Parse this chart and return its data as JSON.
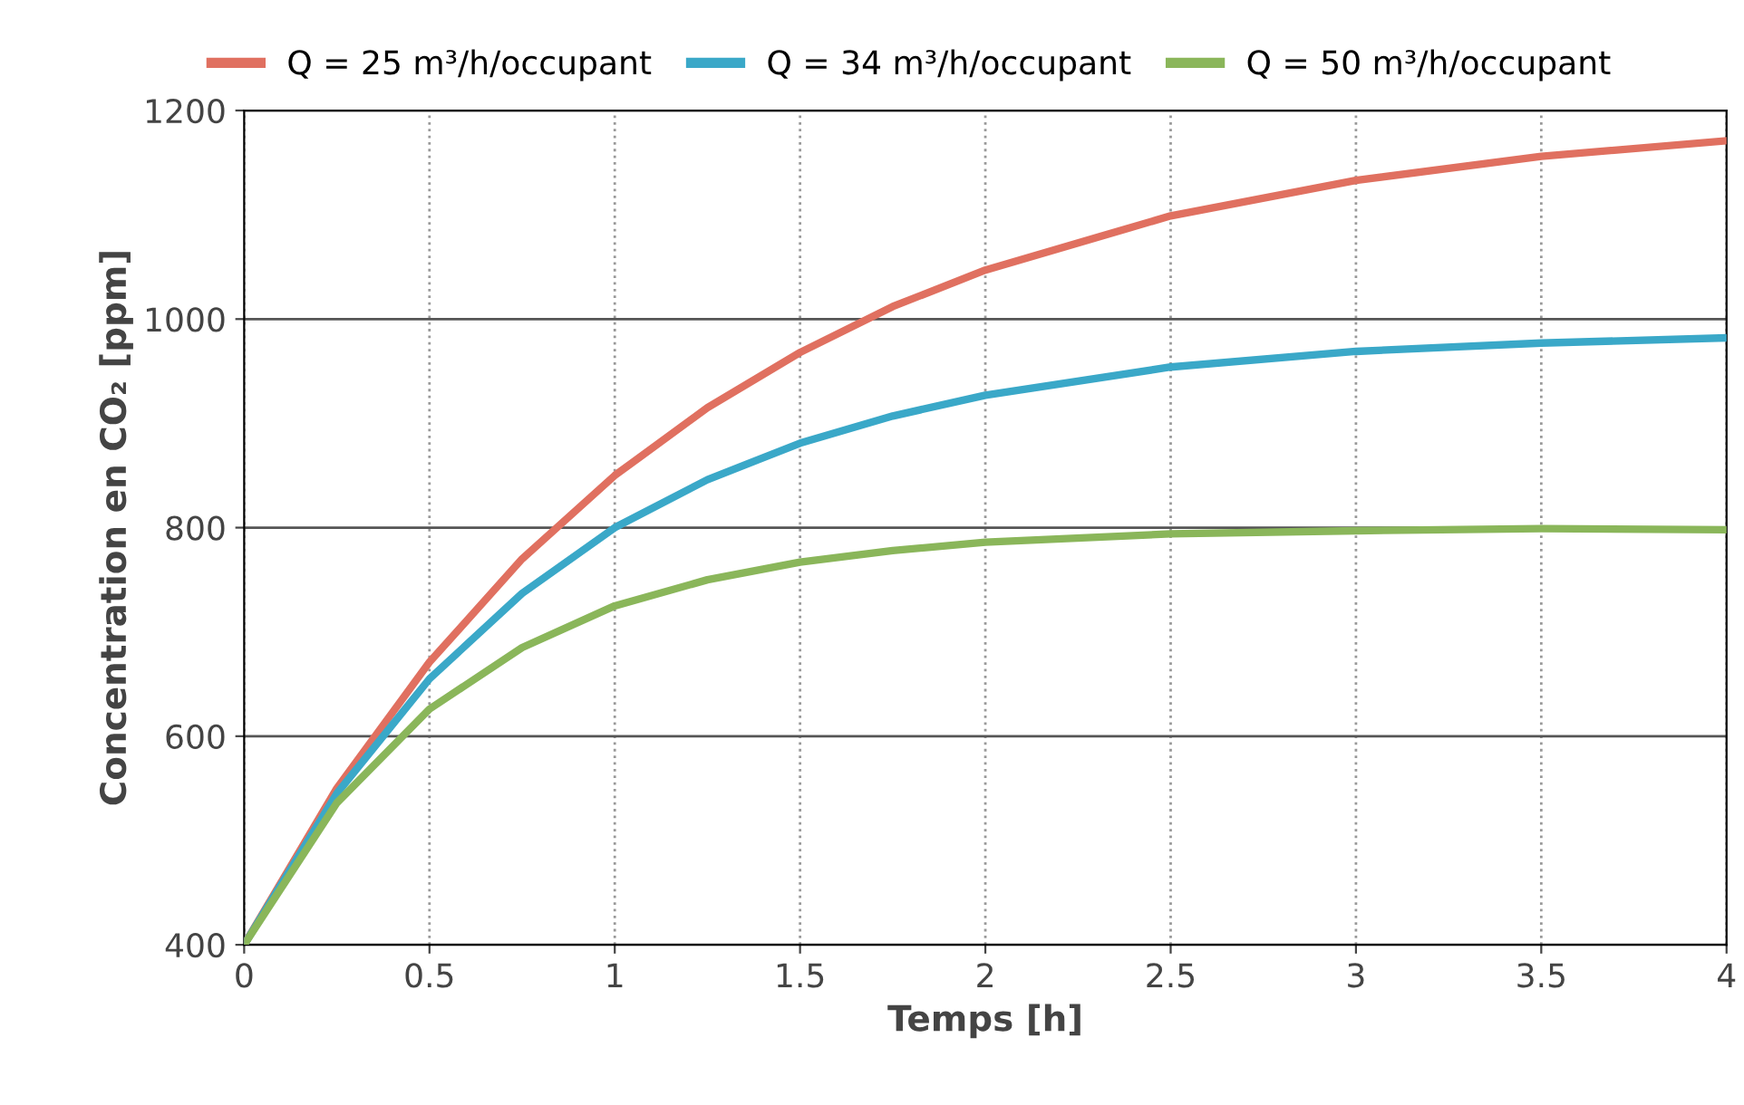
{
  "chart_data": {
    "type": "line",
    "xlabel": "Temps [h]",
    "ylabel": "Concentration en CO₂ [ppm]",
    "x": [
      0,
      0.25,
      0.5,
      0.75,
      1,
      1.25,
      1.5,
      1.75,
      2,
      2.5,
      3,
      3.5,
      4
    ],
    "series": [
      {
        "name": "Q = 25 m³/h/occupant",
        "color": "#e07060",
        "values": [
          400,
          550,
          671,
          770,
          850,
          915,
          968,
          1012,
          1047,
          1099,
          1133,
          1156,
          1171
        ]
      },
      {
        "name": "Q = 34 m³/h/occupant",
        "color": "#3aa8c8",
        "values": [
          400,
          545,
          655,
          737,
          800,
          846,
          881,
          907,
          927,
          954,
          969,
          977,
          982
        ]
      },
      {
        "name": "Q = 50 m³/h/occupant",
        "color": "#8ab65a",
        "values": [
          400,
          536,
          626,
          685,
          725,
          750,
          767,
          778,
          786,
          794,
          797,
          799,
          798
        ]
      }
    ],
    "xlim": [
      0,
      4
    ],
    "xticks": [
      0,
      0.5,
      1,
      1.5,
      2,
      2.5,
      3,
      3.5,
      4
    ],
    "ylim": [
      400,
      1200
    ],
    "yticks": [
      400,
      600,
      800,
      1000,
      1200
    ],
    "grid": true,
    "legend": "top",
    "marker": "none",
    "line_style": "solid"
  }
}
